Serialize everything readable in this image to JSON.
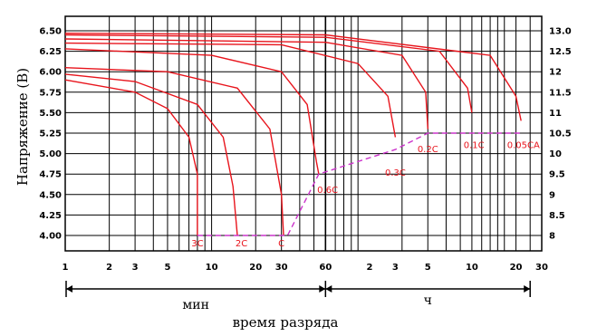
{
  "chart_data": {
    "type": "line",
    "ylabel": "Напряжение (В)",
    "xlabel": "время разряда",
    "x_segments": [
      {
        "label": "мин"
      },
      {
        "label": "ч"
      }
    ],
    "x_scale": "log",
    "x_ticks": [
      {
        "label": "1",
        "minutes": 1
      },
      {
        "label": "2",
        "minutes": 2
      },
      {
        "label": "3",
        "minutes": 3
      },
      {
        "label": "5",
        "minutes": 5
      },
      {
        "label": "10",
        "minutes": 10
      },
      {
        "label": "20",
        "minutes": 20
      },
      {
        "label": "30",
        "minutes": 30
      },
      {
        "label": "60",
        "minutes": 60
      },
      {
        "label": "2",
        "minutes": 120
      },
      {
        "label": "3",
        "minutes": 180
      },
      {
        "label": "5",
        "minutes": 300
      },
      {
        "label": "10",
        "minutes": 600
      },
      {
        "label": "20",
        "minutes": 1200
      },
      {
        "label": "30",
        "minutes": 1800
      }
    ],
    "y_left_ticks": [
      "4.00",
      "4.25",
      "4.50",
      "4.75",
      "5.00",
      "5.25",
      "5.50",
      "5.75",
      "6.00",
      "6.25",
      "6.50"
    ],
    "y_right_ticks": [
      "8",
      "8.5",
      "9",
      "9.5",
      "10",
      "10.5",
      "11",
      "11.5",
      "12",
      "12.5",
      "13.0"
    ],
    "ylim": [
      3.7,
      6.6
    ],
    "grid": true,
    "series": [
      {
        "name": "3C",
        "points": [
          [
            1,
            5.9
          ],
          [
            3,
            5.75
          ],
          [
            5,
            5.55
          ],
          [
            7,
            5.2
          ],
          [
            8,
            4.75
          ],
          [
            8,
            4.0
          ]
        ]
      },
      {
        "name": "2C",
        "points": [
          [
            1,
            5.97
          ],
          [
            3,
            5.88
          ],
          [
            8,
            5.6
          ],
          [
            12,
            5.2
          ],
          [
            14,
            4.6
          ],
          [
            15,
            4.0
          ]
        ]
      },
      {
        "name": "C",
        "points": [
          [
            1,
            6.05
          ],
          [
            5,
            6.0
          ],
          [
            15,
            5.8
          ],
          [
            25,
            5.3
          ],
          [
            30,
            4.5
          ],
          [
            31,
            4.0
          ]
        ]
      },
      {
        "name": "0.6C",
        "points": [
          [
            1,
            6.28
          ],
          [
            10,
            6.2
          ],
          [
            30,
            6.0
          ],
          [
            45,
            5.6
          ],
          [
            52,
            4.9
          ],
          [
            54,
            4.75
          ]
        ]
      },
      {
        "name": "0.3C",
        "points": [
          [
            1,
            6.35
          ],
          [
            30,
            6.33
          ],
          [
            100,
            6.1
          ],
          [
            160,
            5.7
          ],
          [
            180,
            5.2
          ]
        ]
      },
      {
        "name": "0.2C",
        "points": [
          [
            1,
            6.4
          ],
          [
            60,
            6.36
          ],
          [
            200,
            6.2
          ],
          [
            290,
            5.75
          ],
          [
            300,
            5.3
          ]
        ]
      },
      {
        "name": "0.1C",
        "points": [
          [
            1,
            6.45
          ],
          [
            60,
            6.42
          ],
          [
            360,
            6.25
          ],
          [
            560,
            5.8
          ],
          [
            600,
            5.5
          ]
        ]
      },
      {
        "name": "0.05CA",
        "points": [
          [
            1,
            6.47
          ],
          [
            60,
            6.45
          ],
          [
            800,
            6.2
          ],
          [
            1200,
            5.7
          ],
          [
            1300,
            5.4
          ]
        ]
      }
    ],
    "cutoff_line": {
      "color": "#cc33cc",
      "points": [
        [
          8,
          4.0
        ],
        [
          33,
          4.0
        ],
        [
          54,
          4.75
        ],
        [
          180,
          5.05
        ],
        [
          300,
          5.25
        ],
        [
          1300,
          5.25
        ]
      ]
    },
    "curve_labels": [
      {
        "text": "3C",
        "x": 8,
        "y": 3.87
      },
      {
        "text": "2C",
        "x": 16,
        "y": 3.87
      },
      {
        "text": "C",
        "x": 30,
        "y": 3.87
      },
      {
        "text": "0.6C",
        "x": 62,
        "y": 4.52
      },
      {
        "text": "0.3C",
        "x": 180,
        "y": 4.73
      },
      {
        "text": "0.2C",
        "x": 300,
        "y": 5.02
      },
      {
        "text": "0.1C",
        "x": 620,
        "y": 5.07
      },
      {
        "text": "0.05CA",
        "x": 1350,
        "y": 5.07
      }
    ],
    "curve_color": "#e8141c"
  }
}
